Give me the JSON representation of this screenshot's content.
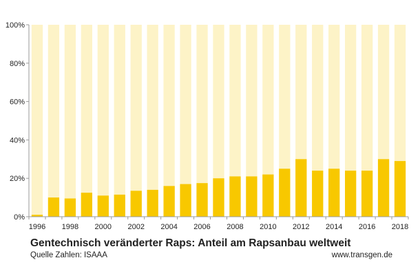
{
  "chart_data": {
    "type": "bar",
    "title": "Gentechnisch veränderter Raps: Anteil am Rapsanbau weltweit",
    "xlabel": "",
    "ylabel": "",
    "ylim": [
      0,
      100
    ],
    "yticks": [
      "0%",
      "20%",
      "40%",
      "60%",
      "80%",
      "100%"
    ],
    "xtick_labels": [
      "1996",
      "1998",
      "2000",
      "2002",
      "2004",
      "2006",
      "2008",
      "2010",
      "2012",
      "2014",
      "2016",
      "2018"
    ],
    "categories": [
      "1996",
      "1997",
      "1998",
      "1999",
      "2000",
      "2001",
      "2002",
      "2003",
      "2004",
      "2005",
      "2006",
      "2007",
      "2008",
      "2009",
      "2010",
      "2011",
      "2012",
      "2013",
      "2014",
      "2015",
      "2016",
      "2017",
      "2018"
    ],
    "values": [
      1,
      10,
      9.5,
      12.5,
      11,
      11.5,
      13.5,
      14,
      16,
      17,
      17.5,
      20,
      21,
      21,
      22,
      25,
      30,
      24,
      25,
      24,
      24,
      30,
      29
    ],
    "background_bar_value": 100,
    "colors": {
      "bar": "#f8c800",
      "background_bar": "#fdf3c7",
      "axis": "#999999"
    }
  },
  "footer": {
    "source": "Quelle Zahlen: ISAAA",
    "website": "www.transgen.de"
  }
}
